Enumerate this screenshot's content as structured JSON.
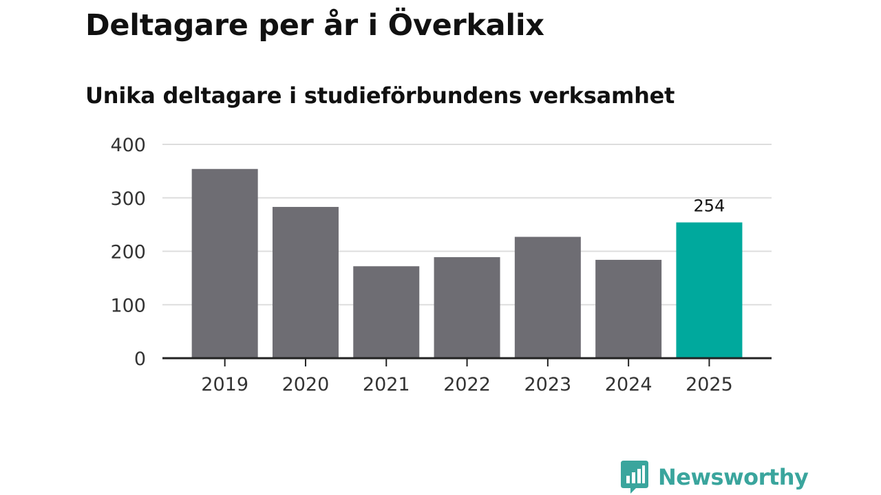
{
  "header": {
    "title": "Deltagare per år i Överkalix",
    "subtitle": "Unika deltagare i studieförbundens verksamhet"
  },
  "brand": {
    "name": "Newsworthy",
    "logo_icon": "bar-chart-speech-bubble-icon"
  },
  "colors": {
    "bar": "#6e6d73",
    "highlight": "#00a99d",
    "grid": "#dddddd",
    "axis": "#222222",
    "brand": "#3aa59d"
  },
  "chart_data": {
    "type": "bar",
    "title": "Deltagare per år i Överkalix",
    "subtitle": "Unika deltagare i studieförbundens verksamhet",
    "categories": [
      "2019",
      "2020",
      "2021",
      "2022",
      "2023",
      "2024",
      "2025"
    ],
    "values": [
      354,
      283,
      172,
      189,
      227,
      184,
      254
    ],
    "highlight_index": 6,
    "data_labels": [
      {
        "index": 6,
        "text": "254"
      }
    ],
    "xlabel": "",
    "ylabel": "",
    "ylim": [
      0,
      400
    ],
    "yticks": [
      0,
      100,
      200,
      300,
      400
    ],
    "grid": true,
    "legend": "none"
  }
}
